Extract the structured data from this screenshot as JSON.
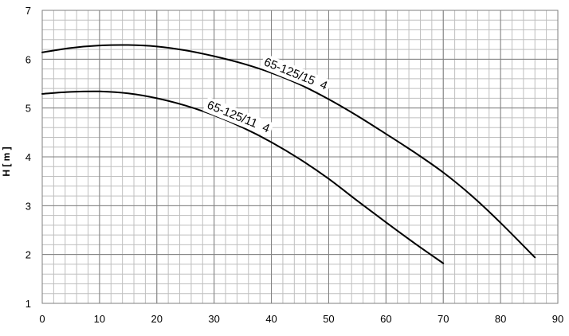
{
  "chart_data": {
    "type": "line",
    "title": "",
    "xlabel": "",
    "ylabel": "H [ m ]",
    "xlim": [
      0,
      90
    ],
    "ylim": [
      1,
      7
    ],
    "x_ticks": [
      0,
      10,
      20,
      30,
      40,
      50,
      60,
      70,
      80,
      90
    ],
    "y_ticks": [
      1,
      2,
      3,
      4,
      5,
      6,
      7
    ],
    "grid": true,
    "grid_minor_x_step": 2,
    "grid_minor_y_step": 0.2,
    "line_color": "#000000",
    "grid_major_color": "#7f7f7f",
    "grid_minor_color": "#bfbfbf",
    "series": [
      {
        "name": "65-125/15  4",
        "x": [
          0,
          5,
          10,
          15,
          20,
          25,
          30,
          35,
          40,
          45,
          50,
          55,
          60,
          65,
          70,
          75,
          80,
          86
        ],
        "y": [
          6.14,
          6.23,
          6.28,
          6.29,
          6.26,
          6.18,
          6.06,
          5.91,
          5.72,
          5.48,
          5.18,
          4.84,
          4.47,
          4.09,
          3.68,
          3.2,
          2.65,
          1.94
        ]
      },
      {
        "name": "65-125/11  4",
        "x": [
          0,
          5,
          10,
          15,
          20,
          25,
          30,
          35,
          40,
          45,
          50,
          55,
          60,
          65,
          70
        ],
        "y": [
          5.29,
          5.33,
          5.34,
          5.3,
          5.2,
          5.05,
          4.85,
          4.6,
          4.3,
          3.95,
          3.55,
          3.1,
          2.66,
          2.23,
          1.82
        ]
      }
    ]
  }
}
